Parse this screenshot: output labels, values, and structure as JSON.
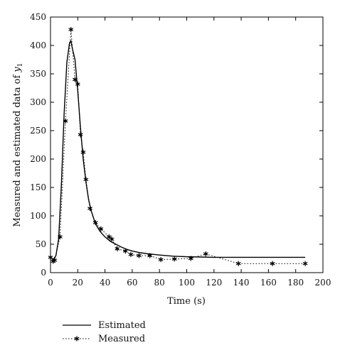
{
  "chart_data": {
    "type": "line",
    "title": "",
    "xlabel": "Time (s)",
    "ylabel": "Measured and estimated data of ",
    "ylabel_var": "y",
    "ylabel_sub": "1",
    "xlim": [
      0,
      200
    ],
    "ylim": [
      0,
      450
    ],
    "xticks": [
      0,
      20,
      40,
      60,
      80,
      100,
      120,
      140,
      160,
      180,
      200
    ],
    "yticks": [
      0,
      50,
      100,
      150,
      200,
      250,
      300,
      350,
      400,
      450
    ],
    "grid": false,
    "legend_position": "bottom-left, outside plot",
    "series": [
      {
        "name": "Estimated",
        "style": "solid",
        "color": "#000000",
        "x": [
          0,
          2,
          4,
          6,
          8,
          10,
          12,
          14,
          15,
          16,
          18,
          20,
          22,
          24,
          26,
          28,
          30,
          32,
          34,
          36,
          38,
          40,
          44,
          48,
          52,
          56,
          60,
          66,
          72,
          80,
          90,
          100,
          110,
          120,
          140,
          160,
          187
        ],
        "y": [
          27,
          23,
          30,
          60,
          155,
          280,
          370,
          405,
          408,
          395,
          375,
          320,
          255,
          200,
          160,
          128,
          108,
          93,
          82,
          74,
          68,
          63,
          55,
          50,
          45,
          41,
          38,
          35,
          33,
          31,
          29,
          28,
          27.5,
          27,
          27,
          27,
          27
        ]
      },
      {
        "name": "Measured",
        "style": "dotted",
        "marker": "asterisk",
        "color": "#000000",
        "x": [
          0,
          2,
          3,
          7,
          11,
          15,
          18,
          20,
          22,
          24,
          26,
          29,
          33,
          37,
          43,
          45,
          49,
          55,
          59,
          65,
          73,
          81,
          91,
          103,
          114,
          138,
          163,
          187
        ],
        "y": [
          27,
          20,
          22,
          63,
          267,
          428,
          340,
          332,
          243,
          212,
          164,
          113,
          88,
          77,
          63,
          59,
          42,
          38,
          32,
          30,
          30,
          23,
          24,
          25,
          33,
          16,
          16,
          16
        ]
      }
    ]
  }
}
